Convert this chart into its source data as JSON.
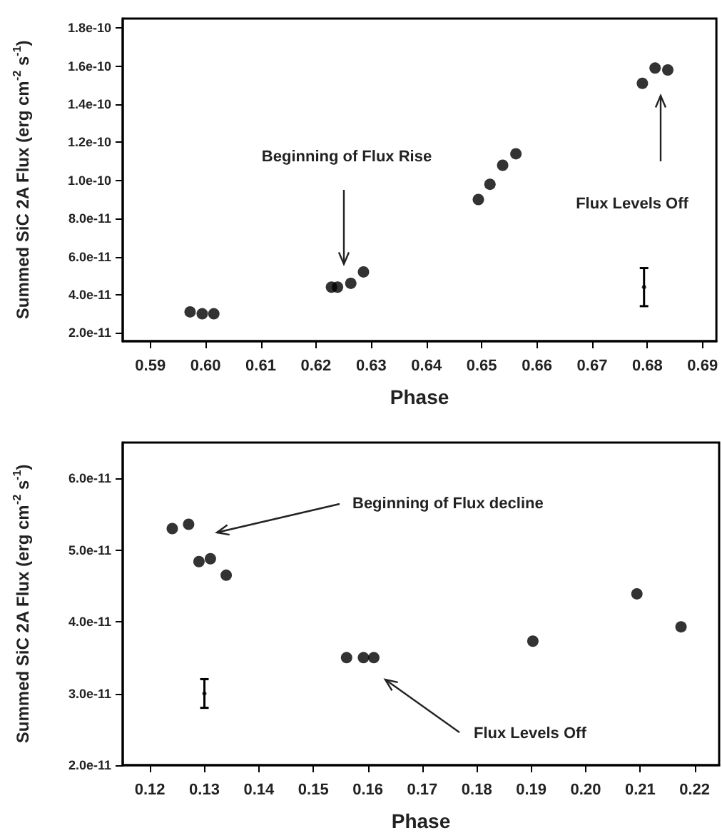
{
  "chart_data": [
    {
      "type": "scatter",
      "xlabel": "Phase",
      "ylabel": "Summed SiC 2A Flux (erg cm$^{-2}$ s$^{-1}$)",
      "marker": "circle",
      "grid": false,
      "xlim": [
        0.585,
        0.6925
      ],
      "xticks": [
        0.59,
        {
          "value": 0.6,
          "label": "0.60"
        },
        0.61,
        0.62,
        0.63,
        0.64,
        0.65,
        0.66,
        0.67,
        0.68,
        0.69
      ],
      "ylim": [
        1.56e-11,
        1.85e-10
      ],
      "yticks": [
        {
          "value": 2e-11,
          "label": "2.0e-11"
        },
        {
          "value": 4e-11,
          "label": "4.0e-11"
        },
        {
          "value": 6e-11,
          "label": "6.0e-11"
        },
        {
          "value": 8e-11,
          "label": "8.0e-11"
        },
        {
          "value": 1e-10,
          "label": "1.0e-10"
        },
        {
          "value": 1.2e-10,
          "label": "1.2e-10"
        },
        {
          "value": 1.4e-10,
          "label": "1.4e-10"
        },
        {
          "value": 1.6e-10,
          "label": "1.6e-10"
        },
        {
          "value": 1.8e-10,
          "label": "1.8e-10"
        }
      ],
      "series": [
        {
          "color": "#000000",
          "x": [
            0.5972,
            0.5994,
            0.6015,
            0.6228,
            0.6239,
            0.6263,
            0.6286,
            0.6494,
            0.6515,
            0.6538,
            0.6562,
            0.6791,
            0.6814,
            0.6837
          ],
          "values": [
            3.1e-11,
            3e-11,
            3e-11,
            4.4e-11,
            4.4e-11,
            4.6e-11,
            5.2e-11,
            9e-11,
            9.8e-11,
            1.08e-10,
            1.14e-10,
            1.51e-10,
            1.59e-10,
            1.58e-10
          ]
        },
        {
          "color": "#000000",
          "marker": "none",
          "x": [
            0.6794
          ],
          "values": [
            4.4e-11
          ],
          "errors": [
            1e-11
          ]
        }
      ],
      "annotations": [
        "Beginning of Flux Rise",
        "Flux Levels Off"
      ]
    },
    {
      "type": "scatter",
      "xlabel": "Phase",
      "ylabel": "Summed SiC 2A Flux (erg cm$^{-2}$ s$^{-1}$)",
      "marker": "circle",
      "grid": false,
      "xlim": [
        0.115,
        0.2245
      ],
      "xticks": [
        0.12,
        0.13,
        0.14,
        0.15,
        0.16,
        0.17,
        0.18,
        0.19,
        {
          "value": 0.2,
          "label": "0.20"
        },
        0.21,
        0.22
      ],
      "ylim": [
        2e-11,
        6.5e-11
      ],
      "yticks": [
        {
          "value": 2e-11,
          "label": "2.0e-11"
        },
        {
          "value": 3e-11,
          "label": "3.0e-11"
        },
        {
          "value": 4e-11,
          "label": "4.0e-11"
        },
        {
          "value": 5e-11,
          "label": "5.0e-11"
        },
        {
          "value": 6e-11,
          "label": "6.0e-11"
        }
      ],
      "series": [
        {
          "color": "#000000",
          "x": [
            0.1241,
            0.1271,
            0.129,
            0.1311,
            0.134,
            0.1561,
            0.1592,
            0.1611,
            0.1903,
            0.2094,
            0.2175
          ],
          "values": [
            5.3e-11,
            5.36e-11,
            4.84e-11,
            4.88e-11,
            4.65e-11,
            3.5e-11,
            3.5e-11,
            3.5e-11,
            3.73e-11,
            4.39e-11,
            3.93e-11
          ]
        },
        {
          "color": "#000000",
          "marker": "none",
          "x": [
            0.13
          ],
          "values": [
            3e-11
          ],
          "errors": [
            2e-12
          ]
        }
      ],
      "annotations": [
        "Beginning of Flux decline",
        "Flux Levels Off"
      ]
    }
  ]
}
